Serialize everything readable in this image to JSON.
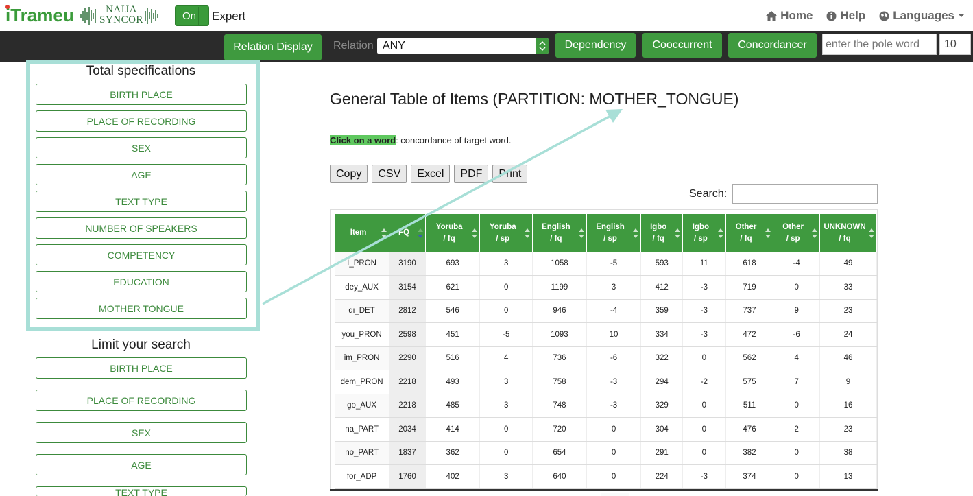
{
  "header": {
    "logo_text": "iTrameur",
    "naija_logo_line1": "NAIJA",
    "naija_logo_line2": "SYNCOR",
    "toggle_label": "On",
    "expert_label": "Expert",
    "nav": {
      "home": "Home",
      "help": "Help",
      "languages": "Languages"
    }
  },
  "toolbar": {
    "relation_display": "Relation Display",
    "relation_label": "Relation",
    "relation_value": "ANY",
    "dependency": "Dependency",
    "cooccurrent": "Cooccurrent",
    "concordancer": "Concordancer",
    "pole_placeholder": "enter the pole word",
    "count_value": "10"
  },
  "left_panel": {
    "total_title": "Total specifications",
    "total_buttons": [
      "BIRTH PLACE",
      "PLACE OF RECORDING",
      "SEX",
      "AGE",
      "TEXT TYPE",
      "NUMBER OF SPEAKERS",
      "COMPETENCY",
      "EDUCATION",
      "MOTHER TONGUE"
    ],
    "limit_title": "Limit your search",
    "limit_buttons": [
      "BIRTH PLACE",
      "PLACE OF RECORDING",
      "SEX",
      "AGE",
      "TEXT TYPE"
    ]
  },
  "main": {
    "title": "General Table of Items (PARTITION: MOTHER_TONGUE)",
    "hint_highlight": "Click on a word",
    "hint_rest": ": concordance of target word.",
    "export_buttons": {
      "copy": "Copy",
      "csv": "CSV",
      "excel": "Excel",
      "pdf": "PDF",
      "print": "Print"
    },
    "search_label": "Search:"
  },
  "table": {
    "headers": [
      [
        "Item"
      ],
      [
        "FQ"
      ],
      [
        "Yoruba",
        "/ fq"
      ],
      [
        "Yoruba",
        "/ sp"
      ],
      [
        "English",
        "/ fq"
      ],
      [
        "English",
        "/ sp"
      ],
      [
        "Igbo",
        "/ fq"
      ],
      [
        "Igbo",
        "/ sp"
      ],
      [
        "Other",
        "/ fq"
      ],
      [
        "Other",
        "/ sp"
      ],
      [
        "UNKNOWN",
        "/ fq"
      ]
    ],
    "rows": [
      [
        "I_PRON",
        "3190",
        "693",
        "3",
        "1058",
        "-5",
        "593",
        "11",
        "618",
        "-4",
        "49"
      ],
      [
        "dey_AUX",
        "3154",
        "621",
        "0",
        "1199",
        "3",
        "412",
        "-3",
        "719",
        "0",
        "33"
      ],
      [
        "di_DET",
        "2812",
        "546",
        "0",
        "946",
        "-4",
        "359",
        "-3",
        "737",
        "9",
        "23"
      ],
      [
        "you_PRON",
        "2598",
        "451",
        "-5",
        "1093",
        "10",
        "334",
        "-3",
        "472",
        "-6",
        "24"
      ],
      [
        "im_PRON",
        "2290",
        "516",
        "4",
        "736",
        "-6",
        "322",
        "0",
        "562",
        "4",
        "46"
      ],
      [
        "dem_PRON",
        "2218",
        "493",
        "3",
        "758",
        "-3",
        "294",
        "-2",
        "575",
        "7",
        "9"
      ],
      [
        "go_AUX",
        "2218",
        "485",
        "3",
        "748",
        "-3",
        "329",
        "0",
        "511",
        "0",
        "16"
      ],
      [
        "na_PART",
        "2034",
        "414",
        "0",
        "720",
        "0",
        "304",
        "0",
        "476",
        "2",
        "23"
      ],
      [
        "no_PART",
        "1837",
        "362",
        "0",
        "654",
        "0",
        "291",
        "0",
        "382",
        "0",
        "38"
      ],
      [
        "for_ADP",
        "1760",
        "402",
        "3",
        "640",
        "0",
        "224",
        "-3",
        "374",
        "0",
        "13"
      ]
    ]
  },
  "colors": {
    "green": "#3f9a3f",
    "dark_bar": "#2b2b2b",
    "highlight_border": "#a8dfd7"
  }
}
